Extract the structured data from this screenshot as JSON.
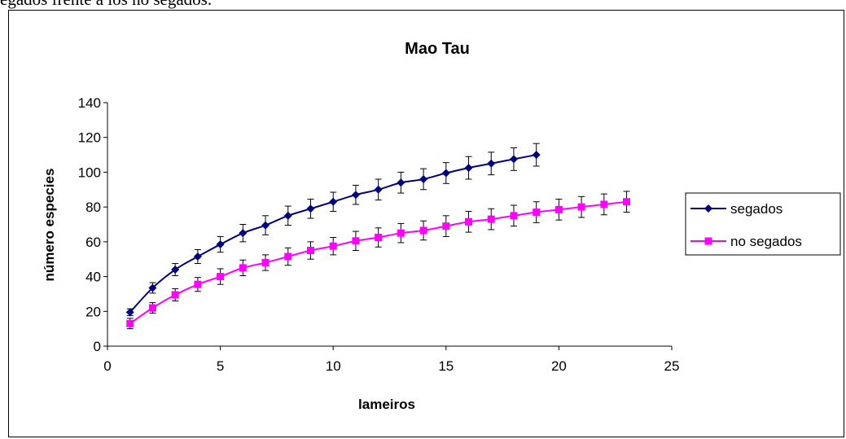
{
  "document": {
    "caption_fragment": "egados frente a los no segados."
  },
  "chart_data": {
    "type": "line",
    "title": "Mao Tau",
    "xlabel": "lameiros",
    "ylabel": "número especies",
    "xlim": [
      0,
      25
    ],
    "ylim": [
      0,
      140
    ],
    "xticks": [
      "0",
      "5",
      "10",
      "15",
      "20",
      "25"
    ],
    "yticks": [
      "0",
      "20",
      "40",
      "60",
      "80",
      "100",
      "120",
      "140"
    ],
    "grid": false,
    "legend_position": "right",
    "series": [
      {
        "name": "segados",
        "color": "#00007F",
        "marker": "diamond",
        "x": [
          1,
          2,
          3,
          4,
          5,
          6,
          7,
          8,
          9,
          10,
          11,
          12,
          13,
          14,
          15,
          16,
          17,
          18,
          19
        ],
        "values": [
          19.5,
          33.5,
          44,
          51.5,
          58.5,
          65,
          69.5,
          75,
          79,
          83,
          87,
          90,
          94,
          96,
          99.5,
          102.5,
          105,
          107.5,
          110
        ],
        "error": [
          2,
          3,
          3.5,
          4,
          4.5,
          5,
          5.5,
          5.5,
          5.5,
          5.5,
          5.5,
          6,
          6,
          6,
          6,
          6.5,
          6.5,
          6.5,
          6.5
        ]
      },
      {
        "name": "no segados",
        "color": "#FF00FF",
        "marker": "square",
        "x": [
          1,
          2,
          3,
          4,
          5,
          6,
          7,
          8,
          9,
          10,
          11,
          12,
          13,
          14,
          15,
          16,
          17,
          18,
          19,
          20,
          21,
          22,
          23
        ],
        "values": [
          13,
          22,
          29.5,
          35.5,
          40,
          45,
          48,
          51.5,
          55,
          57.5,
          60.5,
          62.5,
          65,
          66.5,
          69,
          71.5,
          73,
          75,
          77,
          78.5,
          80,
          81.5,
          83
        ],
        "error": [
          3,
          3,
          3.5,
          4,
          4.5,
          4.5,
          4.5,
          5,
          5,
          5,
          5.5,
          5.5,
          5.5,
          5.5,
          6,
          6,
          6,
          6,
          6,
          6,
          6,
          6,
          6
        ]
      }
    ]
  }
}
